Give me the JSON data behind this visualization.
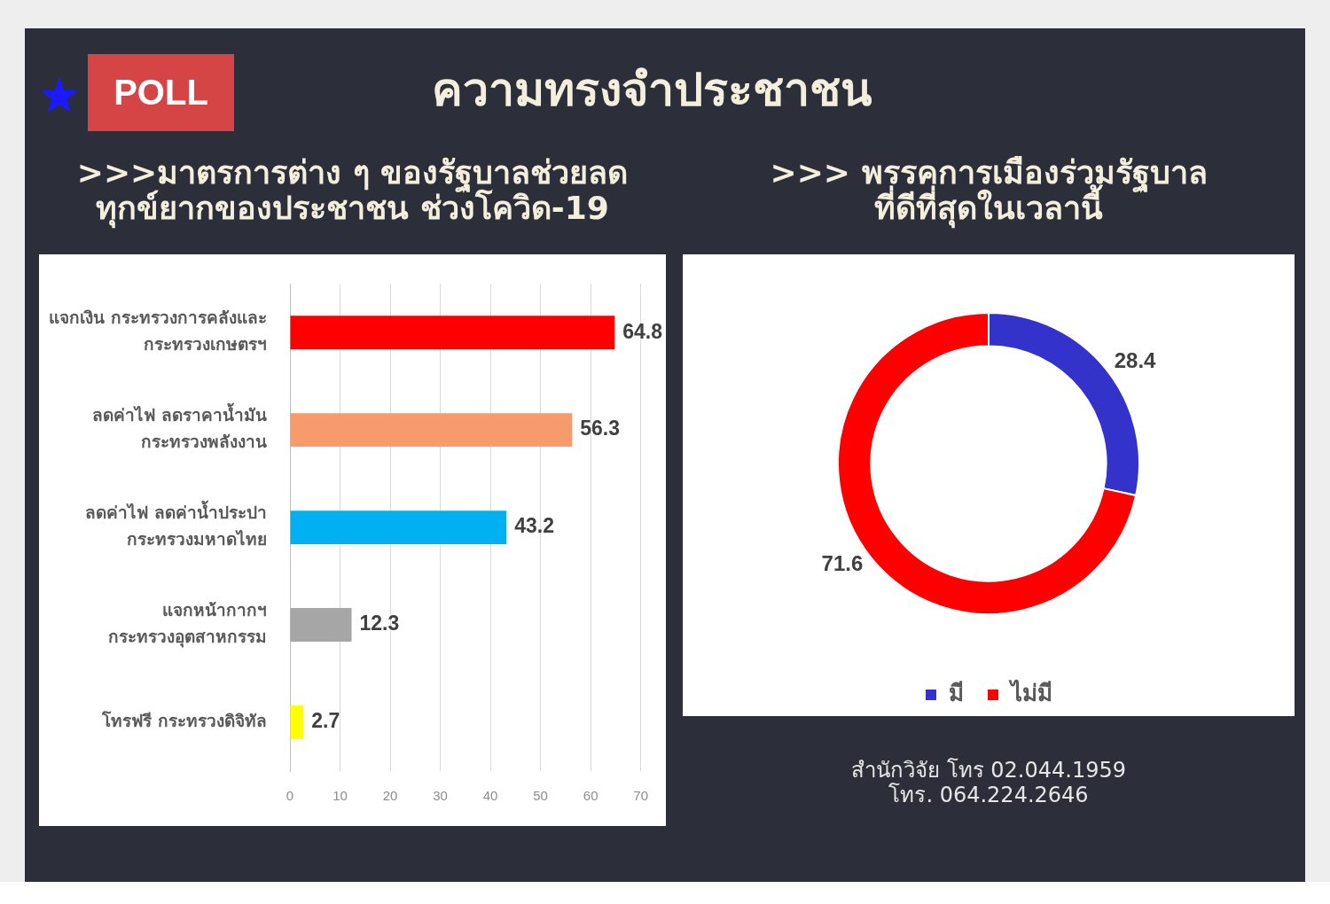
{
  "chart_data": [
    {
      "type": "bar",
      "title": "ความทรงจำประชาชน",
      "subtitle": ">>>มาตรการต่าง ๆ ของรัฐบาลช่วยลด\nทุกข์ยากของประชาชน ช่วงโควิด-19",
      "annotations": [
        "POLL"
      ],
      "orientation": "horizontal",
      "categories": [
        "แจกเงิน กระทรวงการคลังและ\nกระทรวงเกษตรฯ",
        "ลดค่าไฟ ลดราคาน้ำมัน\nกระทรวงพลังงาน",
        "ลดค่าไฟ ลดค่าน้ำประปา\nกระทรวงมหาดไทย",
        "แจกหน้ากากฯ\nกระทรวงอุตสาหกรรม",
        "โทรฟรี กระทรวงดิจิทัล"
      ],
      "values": [
        64.8,
        56.3,
        43.2,
        12.3,
        2.7
      ],
      "colors": [
        "#ff0000",
        "#f79b6c",
        "#00b0f0",
        "#a6a6a6",
        "#ffff00"
      ],
      "xlim": [
        0,
        70
      ],
      "xticks": [
        0,
        10,
        20,
        30,
        40,
        50,
        60,
        70
      ],
      "grid": "x",
      "data_labels": true
    },
    {
      "type": "donut",
      "title": ">>> พรรคการเมืองร่วมรัฐบาล\nที่ดีที่สุดในเวลานี้",
      "categories": [
        "มี",
        "ไม่มี"
      ],
      "values": [
        28.4,
        71.6
      ],
      "colors": [
        "#3333cc",
        "#ff0000"
      ],
      "legend": "bottom",
      "data_labels": true,
      "annotations": [
        "สำนักวิจัย โทร 02.044.1959",
        "โทร. 064.224.2646"
      ]
    }
  ]
}
